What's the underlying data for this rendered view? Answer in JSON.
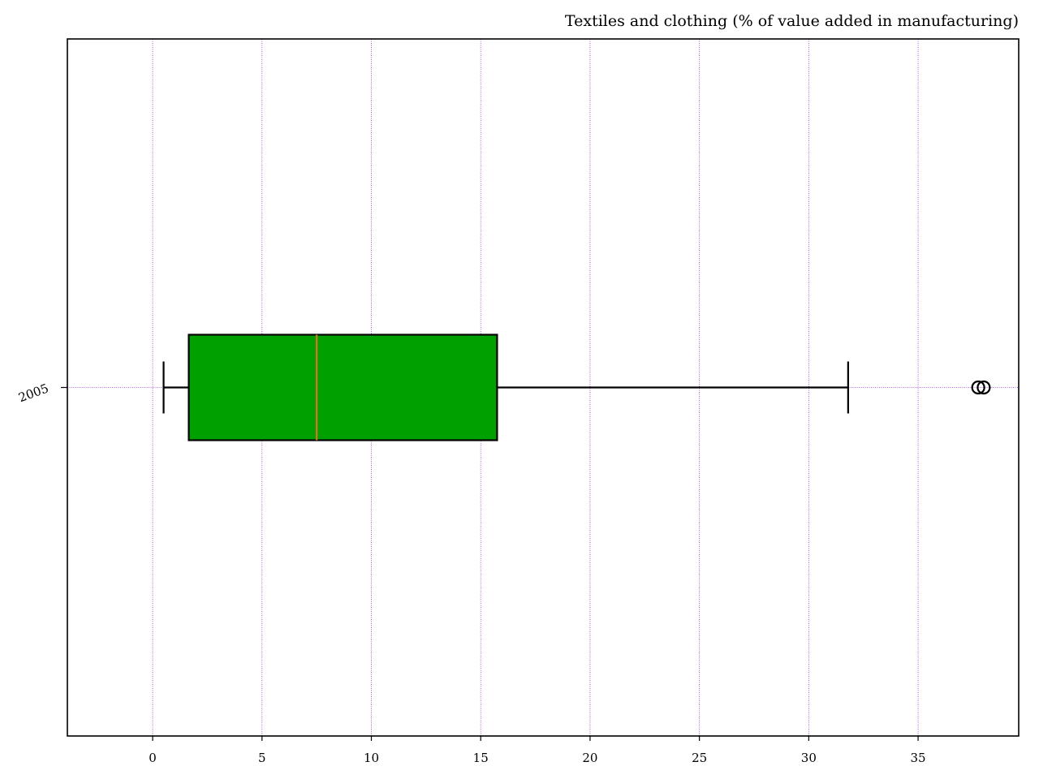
{
  "chart_data": {
    "type": "boxplot",
    "orientation": "horizontal",
    "title": "Textiles and clothing (% of value added in manufacturing)",
    "xlabel": "",
    "ylabel": "",
    "xlim": [
      -3.9,
      39.6
    ],
    "x_ticks": [
      0,
      5,
      10,
      15,
      20,
      25,
      30,
      35
    ],
    "x_tick_labels": [
      "0",
      "5",
      "10",
      "15",
      "20",
      "25",
      "30",
      "35"
    ],
    "grid": true,
    "legend": "none",
    "categories": [
      "2005"
    ],
    "boxes": [
      {
        "category": "2005",
        "whisker_low": 0.5,
        "q1": 1.65,
        "median": 7.5,
        "q3": 15.75,
        "whisker_high": 31.8,
        "outliers": [
          37.75,
          38.0
        ]
      }
    ],
    "colors": {
      "box_fill": "#00a000",
      "median_line": "#c87a1e",
      "grid": "#9b30d9",
      "lines": "#000000"
    }
  }
}
